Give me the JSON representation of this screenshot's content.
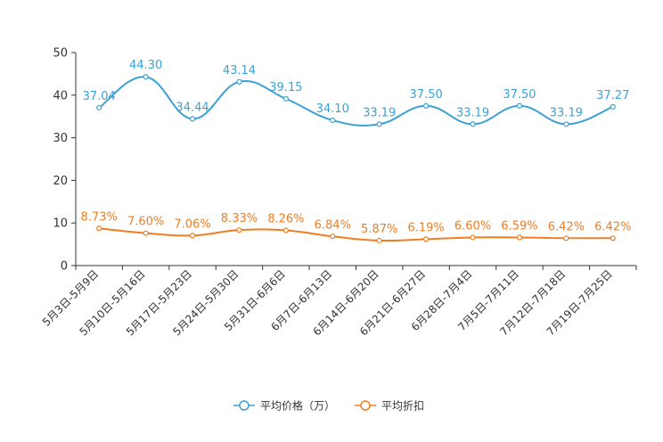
{
  "chart_data": {
    "type": "line",
    "categories": [
      "5月3日-5月9日",
      "5月10日-5月16日",
      "5月17日-5月23日",
      "5月24日-5月30日",
      "5月31日-6月6日",
      "6月7日-6月13日",
      "6月14日-6月20日",
      "6月21日-6月27日",
      "6月28日-7月4日",
      "7月5日-7月11日",
      "7月12日-7月18日",
      "7月19日-7月25日"
    ],
    "ylim": [
      0,
      50
    ],
    "yticks": [
      0,
      10,
      20,
      30,
      40,
      50
    ],
    "series": [
      {
        "name": "平均价格（万）",
        "color": "#3ba1d5",
        "values": [
          37.04,
          44.3,
          34.44,
          43.14,
          39.15,
          34.1,
          33.19,
          37.5,
          33.19,
          37.5,
          33.19,
          37.27
        ],
        "labels": [
          "37.04",
          "44.30",
          "34.44",
          "43.14",
          "39.15",
          "34.10",
          "33.19",
          "37.50",
          "33.19",
          "37.50",
          "33.19",
          "37.27"
        ]
      },
      {
        "name": "平均折扣",
        "color": "#ef7d22",
        "values": [
          8.73,
          7.6,
          7.06,
          8.33,
          8.26,
          6.84,
          5.87,
          6.19,
          6.6,
          6.59,
          6.42,
          6.42
        ],
        "labels": [
          "8.73%",
          "7.60%",
          "7.06%",
          "8.33%",
          "8.26%",
          "6.84%",
          "5.87%",
          "6.19%",
          "6.60%",
          "6.59%",
          "6.42%",
          "6.42%"
        ]
      }
    ],
    "legend_position": "bottom-center",
    "grid": false
  }
}
